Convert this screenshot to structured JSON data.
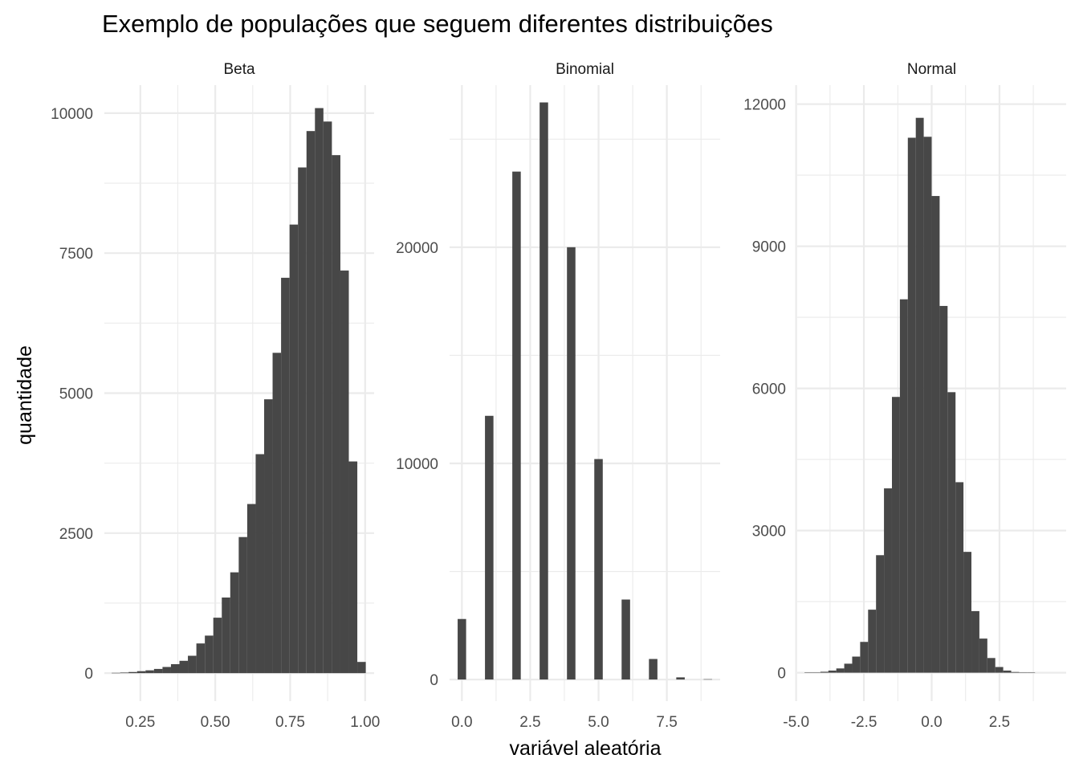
{
  "title": "Exemplo de populações que seguem diferentes distribuições",
  "xlabel": "variável aleatória",
  "ylabel": "quantidade",
  "chart_data": [
    {
      "type": "bar",
      "panel": "Beta",
      "xlim": [
        0.13,
        1.03
      ],
      "ylim": [
        -500,
        10500
      ],
      "x_ticks": [
        0.25,
        0.5,
        0.75,
        1.0
      ],
      "x_tick_labels": [
        "0.25",
        "0.50",
        "0.75",
        "1.00"
      ],
      "y_ticks": [
        0,
        2500,
        5000,
        7500,
        10000
      ],
      "y_tick_labels": [
        "0",
        "2500",
        "5000",
        "7500",
        "10000"
      ],
      "bin_width": 0.02826,
      "bin_centers": [
        0.1685,
        0.1968,
        0.225,
        0.2533,
        0.2815,
        0.3098,
        0.3381,
        0.3663,
        0.3946,
        0.4228,
        0.4511,
        0.4794,
        0.5076,
        0.5359,
        0.5641,
        0.5924,
        0.6207,
        0.6489,
        0.6772,
        0.7054,
        0.7337,
        0.762,
        0.7902,
        0.8185,
        0.8467,
        0.875,
        0.9033,
        0.9315,
        0.9598,
        0.988,
        1.0163
      ],
      "values": [
        5,
        10,
        20,
        35,
        50,
        75,
        110,
        160,
        220,
        310,
        530,
        670,
        990,
        1350,
        1800,
        2430,
        3020,
        3910,
        4890,
        5720,
        7060,
        8010,
        9030,
        9680,
        10090,
        9850,
        9250,
        7190,
        3780,
        200,
        0
      ]
    },
    {
      "type": "bar",
      "panel": "Binomial",
      "xlim": [
        -0.45,
        9.45
      ],
      "ylim": [
        -1000,
        27500
      ],
      "x_ticks": [
        0,
        2.5,
        5,
        7.5
      ],
      "x_tick_labels": [
        "0.0",
        "2.5",
        "5.0",
        "7.5"
      ],
      "y_ticks": [
        0,
        10000,
        20000
      ],
      "y_tick_labels": [
        "0",
        "10000",
        "20000"
      ],
      "bin_width": 0.31,
      "bin_centers": [
        0.0,
        1.0,
        2.0,
        3.0,
        4.0,
        5.0,
        6.0,
        7.0,
        8.0,
        9.0
      ],
      "values": [
        2800,
        12200,
        23500,
        26700,
        20000,
        10200,
        3700,
        950,
        100,
        15
      ]
    },
    {
      "type": "bar",
      "panel": "Normal",
      "xlim": [
        -4.96,
        4.96
      ],
      "ylim": [
        -600,
        12400
      ],
      "x_ticks": [
        -5.0,
        -2.5,
        0.0,
        2.5
      ],
      "x_tick_labels": [
        "-5.0",
        "-2.5",
        "0.0",
        "2.5"
      ],
      "y_ticks": [
        0,
        3000,
        6000,
        9000,
        12000
      ],
      "y_tick_labels": [
        "0",
        "3000",
        "6000",
        "9000",
        "12000"
      ],
      "bin_width": 0.2932,
      "bin_centers": [
        -4.838,
        -4.545,
        -4.252,
        -3.959,
        -3.665,
        -3.372,
        -3.079,
        -2.786,
        -2.492,
        -2.199,
        -1.906,
        -1.613,
        -1.319,
        -1.026,
        -0.733,
        -0.44,
        -0.147,
        0.147,
        0.44,
        0.733,
        1.026,
        1.319,
        1.613,
        1.906,
        2.199,
        2.492,
        2.786,
        3.079,
        3.372,
        3.665,
        3.959
      ],
      "values": [
        0,
        3,
        8,
        20,
        45,
        90,
        190,
        340,
        650,
        1330,
        2480,
        3890,
        5820,
        7880,
        11290,
        11710,
        11310,
        10060,
        7740,
        5920,
        4020,
        2550,
        1300,
        720,
        310,
        120,
        45,
        15,
        5,
        2,
        0
      ]
    }
  ]
}
